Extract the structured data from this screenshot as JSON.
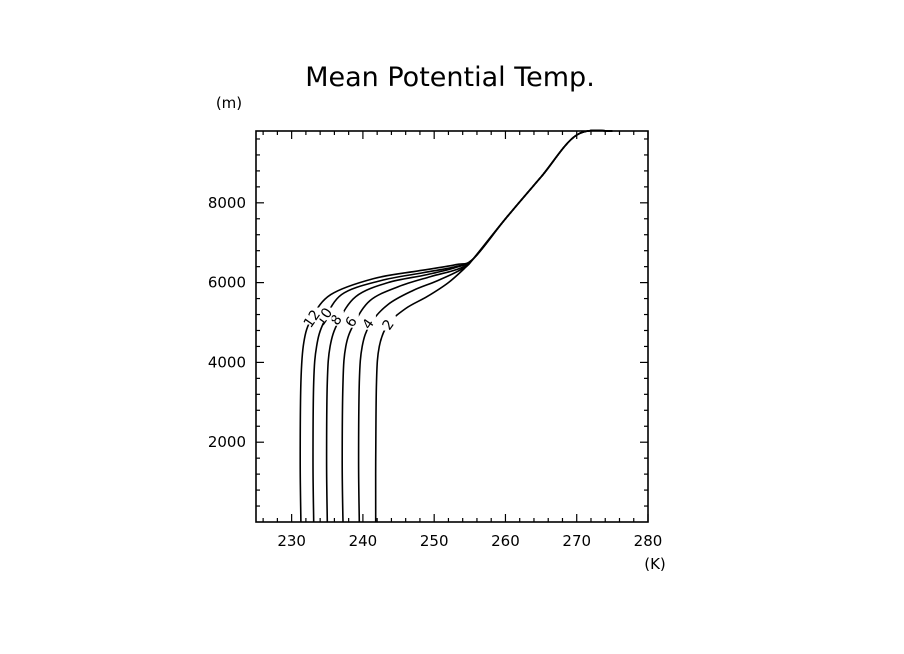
{
  "chart_data": {
    "type": "line",
    "title": "Mean Potential Temp.",
    "xlabel": "(K)",
    "ylabel": "(m)",
    "xlim": [
      225,
      280
    ],
    "ylim": [
      0,
      9800
    ],
    "xticks": [
      230,
      240,
      250,
      260,
      270,
      280
    ],
    "yticks": [
      2000,
      4000,
      6000,
      8000
    ],
    "grid": false,
    "legend": "none",
    "series": [
      {
        "name": "2",
        "label": "2",
        "label_at": [
          243.5,
          4950
        ],
        "x": [
          241.8,
          241.8,
          241.9,
          242.3,
          243.5,
          246,
          249,
          252,
          254.5,
          255.5,
          260,
          265,
          270,
          275
        ],
        "y": [
          0,
          1500,
          3500,
          4400,
          4950,
          5350,
          5650,
          6000,
          6400,
          6600,
          7600,
          8650,
          9700,
          9800
        ]
      },
      {
        "name": "4",
        "label": "4",
        "label_at": [
          240.7,
          4970
        ],
        "x": [
          239.5,
          239.4,
          239.5,
          239.9,
          241,
          243.5,
          247,
          250.5,
          254,
          255.5,
          260,
          265,
          270,
          275
        ],
        "y": [
          0,
          1500,
          3500,
          4400,
          4950,
          5450,
          5800,
          6050,
          6350,
          6600,
          7600,
          8650,
          9700,
          9800
        ]
      },
      {
        "name": "6",
        "label": "6",
        "label_at": [
          238.3,
          5020
        ],
        "x": [
          237.2,
          237.1,
          237.2,
          237.6,
          238.7,
          241,
          245,
          249.5,
          253.5,
          255.5,
          260,
          265,
          270,
          275
        ],
        "y": [
          0,
          1500,
          3500,
          4400,
          4950,
          5550,
          5900,
          6150,
          6350,
          6600,
          7600,
          8650,
          9700,
          9800
        ]
      },
      {
        "name": "8",
        "label": "8",
        "label_at": [
          236.2,
          5070
        ],
        "x": [
          235.0,
          234.9,
          235.0,
          235.4,
          236.5,
          239,
          243.5,
          249,
          253,
          255.5,
          260,
          265,
          270,
          275
        ],
        "y": [
          0,
          1500,
          3500,
          4400,
          5000,
          5650,
          6000,
          6200,
          6380,
          6600,
          7600,
          8650,
          9700,
          9800
        ]
      },
      {
        "name": "10",
        "label": "10",
        "label_at": [
          234.5,
          5150
        ],
        "x": [
          233.1,
          233.0,
          233.1,
          233.5,
          234.5,
          237,
          242.5,
          248.5,
          253,
          255.5,
          260,
          265,
          270,
          275
        ],
        "y": [
          0,
          1500,
          3500,
          4400,
          5000,
          5700,
          6050,
          6250,
          6400,
          6600,
          7600,
          8650,
          9700,
          9800
        ]
      },
      {
        "name": "12",
        "label": "12",
        "label_at": [
          232.8,
          5100
        ],
        "x": [
          231.3,
          231.2,
          231.3,
          231.7,
          232.8,
          235.5,
          241.5,
          248,
          253,
          255.5,
          260,
          265,
          270,
          275
        ],
        "y": [
          0,
          1500,
          3500,
          4500,
          5100,
          5700,
          6100,
          6300,
          6450,
          6600,
          7600,
          8650,
          9700,
          9800
        ]
      }
    ]
  }
}
